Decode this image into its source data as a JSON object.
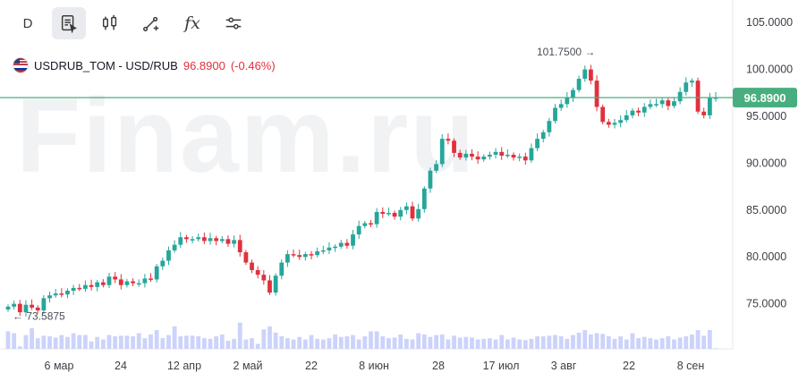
{
  "toolbar": {
    "period_label": "D",
    "buttons": [
      "interval-button",
      "notes-button",
      "candles-button",
      "drawing-button",
      "indicators-button",
      "settings-button"
    ],
    "fx_label": "fx"
  },
  "legend": {
    "symbol": "USDRUB_TOM - USD/RUB",
    "price": "96.8900",
    "change": "(-0.46%)",
    "change_color": "#e0313d"
  },
  "watermark": "Finam.ru",
  "colors": {
    "up": "#26a69a",
    "down": "#e0313d",
    "volume": "#ccd3fb",
    "price_line": "#49ae7f",
    "price_label_bg": "#49ae7f"
  },
  "chart_data": {
    "type": "candlestick",
    "y_axis": {
      "ticks": [
        "105.0000",
        "100.0000",
        "95.0000",
        "90.0000",
        "85.0000",
        "80.0000",
        "75.0000"
      ],
      "range": [
        70.1,
        107.3
      ]
    },
    "x_axis": {
      "ticks": [
        "6 мар",
        "24",
        "12 апр",
        "2 май",
        "22",
        "8 июн",
        "28",
        "17 июл",
        "3 авг",
        "22",
        "8 сен"
      ]
    },
    "current_price": "96.8900",
    "max_marker": "101.7500",
    "min_marker": "73.5875",
    "series": [
      {
        "close": [
          74.6,
          74.9,
          74.0,
          74.8,
          74.5,
          74.2,
          75.5,
          75.8,
          76.0,
          75.9,
          76.3,
          76.6,
          76.5,
          76.9,
          76.7,
          77.2,
          76.9,
          77.8,
          77.5,
          76.9,
          77.3,
          77.1,
          77.1,
          77.6,
          77.5,
          78.9,
          79.5,
          80.6,
          81.2,
          82.0,
          81.8,
          81.8,
          82.0,
          81.6,
          81.9,
          81.6,
          81.8,
          81.3,
          81.7,
          80.4,
          79.3,
          78.5,
          78.0,
          77.4,
          76.1,
          77.9,
          79.3,
          80.2,
          80.1,
          79.9,
          80.2,
          80.1,
          80.5,
          80.6,
          80.9,
          81.0,
          81.4,
          81.1,
          82.3,
          83.2,
          83.5,
          83.4,
          84.7,
          84.5,
          84.6,
          84.2,
          84.9,
          85.3,
          84.0,
          85.0,
          87.2,
          89.1,
          89.8,
          92.5,
          92.3,
          91.0,
          90.5,
          90.9,
          90.6,
          90.3,
          90.6,
          90.8,
          91.1,
          90.7,
          90.8,
          90.5,
          90.6,
          90.2,
          91.5,
          92.5,
          93.2,
          94.4,
          95.8,
          96.2,
          96.9,
          97.7,
          98.9,
          99.9,
          98.7,
          95.9,
          94.3,
          94.0,
          94.2,
          94.5,
          95.0,
          95.5,
          95.3,
          95.9,
          96.2,
          96.2,
          96.6,
          96.0,
          96.5,
          97.5,
          98.5,
          98.7,
          95.4,
          95.0,
          96.9,
          96.9
        ]
      }
    ],
    "volume_series": [
      0.28,
      0.25,
      0.04,
      0.22,
      0.33,
      0.17,
      0.21,
      0.2,
      0.18,
      0.22,
      0.19,
      0.25,
      0.22,
      0.22,
      0.12,
      0.19,
      0.15,
      0.22,
      0.2,
      0.21,
      0.21,
      0.2,
      0.25,
      0.17,
      0.23,
      0.3,
      0.17,
      0.22,
      0.36,
      0.2,
      0.21,
      0.21,
      0.2,
      0.17,
      0.16,
      0.2,
      0.23,
      0.13,
      0.16,
      0.42,
      0.15,
      0.17,
      0.08,
      0.31,
      0.36,
      0.26,
      0.2,
      0.17,
      0.15,
      0.19,
      0.15,
      0.22,
      0.16,
      0.15,
      0.17,
      0.23,
      0.19,
      0.2,
      0.22,
      0.15,
      0.2,
      0.28,
      0.28,
      0.2,
      0.17,
      0.18,
      0.23,
      0.16,
      0.15,
      0.25,
      0.23,
      0.19,
      0.22,
      0.23,
      0.15,
      0.21,
      0.18,
      0.19,
      0.18,
      0.15,
      0.16,
      0.17,
      0.15,
      0.22,
      0.15,
      0.18,
      0.15,
      0.14,
      0.16,
      0.2,
      0.2,
      0.21,
      0.22,
      0.2,
      0.16,
      0.22,
      0.26,
      0.3,
      0.23,
      0.25,
      0.24,
      0.2,
      0.16,
      0.2,
      0.15,
      0.25,
      0.17,
      0.19,
      0.17,
      0.15,
      0.17,
      0.2,
      0.15,
      0.18,
      0.2,
      0.23,
      0.3,
      0.21,
      0.3,
      0.01
    ]
  }
}
